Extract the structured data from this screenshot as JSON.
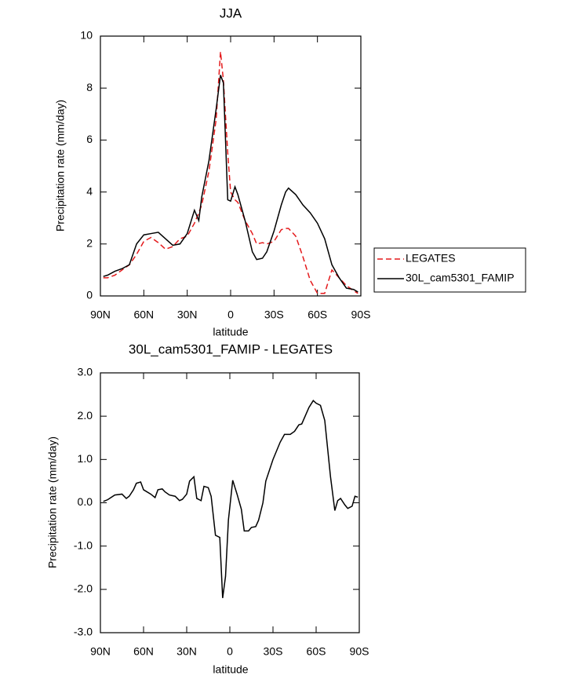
{
  "chart_data": [
    {
      "type": "line",
      "title": "JJA",
      "xlabel": "latitude",
      "ylabel": "Precipitation rate (mm/day)",
      "x": [
        88,
        85,
        80,
        75,
        70,
        65,
        60,
        55,
        50,
        45,
        40,
        35,
        30,
        25,
        22,
        20,
        15,
        10,
        7,
        5,
        2,
        0,
        -3,
        -5,
        -10,
        -15,
        -18,
        -22,
        -25,
        -30,
        -35,
        -38,
        -40,
        -45,
        -50,
        -55,
        -60,
        -65,
        -70,
        -75,
        -80,
        -85,
        -88
      ],
      "series": [
        {
          "name": "LEGATES",
          "color": "#e41a1c",
          "line_style": "dashed",
          "values": [
            0.7,
            0.7,
            0.8,
            1.0,
            1.2,
            1.6,
            2.1,
            2.25,
            2.05,
            1.8,
            1.9,
            2.2,
            2.3,
            2.8,
            3.2,
            3.5,
            4.8,
            6.8,
            9.4,
            8.3,
            5.5,
            4.0,
            3.7,
            3.6,
            2.9,
            2.4,
            2.0,
            2.05,
            2.0,
            2.1,
            2.55,
            2.6,
            2.6,
            2.3,
            1.5,
            0.6,
            0.1,
            0.1,
            1.0,
            0.7,
            0.4,
            0.2,
            0.1
          ]
        },
        {
          "name": "30L_cam5301_FAMIP",
          "color": "#000000",
          "line_style": "solid",
          "values": [
            0.75,
            0.8,
            0.95,
            1.05,
            1.2,
            2.0,
            2.35,
            2.4,
            2.45,
            2.2,
            1.95,
            2.0,
            2.4,
            3.3,
            2.9,
            3.8,
            5.2,
            7.2,
            8.5,
            8.2,
            3.7,
            3.65,
            4.2,
            3.9,
            2.9,
            1.7,
            1.4,
            1.45,
            1.7,
            2.5,
            3.5,
            4.0,
            4.15,
            3.9,
            3.5,
            3.2,
            2.8,
            2.2,
            1.2,
            0.7,
            0.3,
            0.25,
            0.15
          ]
        }
      ],
      "xlim": [
        90,
        -90
      ],
      "xticks": [
        {
          "value": 90,
          "label": "90N"
        },
        {
          "value": 60,
          "label": "60N"
        },
        {
          "value": 30,
          "label": "30N"
        },
        0,
        {
          "value": -30,
          "label": "30S"
        },
        {
          "value": -60,
          "label": "60S"
        },
        {
          "value": -90,
          "label": "90S"
        }
      ],
      "ylim": [
        0,
        10
      ],
      "yticks": [
        0,
        2,
        4,
        6,
        8,
        10
      ],
      "legend": "outside right"
    },
    {
      "type": "line",
      "title": "30L_cam5301_FAMIP - LEGATES",
      "xlabel": "latitude",
      "ylabel": "Precipitation rate (mm/day)",
      "x": [
        88,
        85,
        80,
        75,
        72,
        70,
        67,
        65,
        62,
        60,
        55,
        52,
        50,
        47,
        45,
        42,
        38,
        35,
        33,
        30,
        28,
        25,
        23,
        20,
        18,
        15,
        13,
        10,
        7,
        5,
        3,
        1,
        -2,
        -5,
        -8,
        -10,
        -13,
        -15,
        -18,
        -20,
        -23,
        -25,
        -30,
        -35,
        -38,
        -42,
        -45,
        -48,
        -50,
        -55,
        -58,
        -60,
        -63,
        -66,
        -70,
        -73,
        -75,
        -77,
        -80,
        -82,
        -85,
        -87,
        -89
      ],
      "values": [
        0.03,
        0.07,
        0.18,
        0.2,
        0.1,
        0.15,
        0.3,
        0.45,
        0.48,
        0.3,
        0.2,
        0.12,
        0.3,
        0.32,
        0.25,
        0.18,
        0.15,
        0.05,
        0.08,
        0.2,
        0.5,
        0.6,
        0.1,
        0.05,
        0.38,
        0.35,
        0.15,
        -0.75,
        -0.8,
        -2.2,
        -1.7,
        -0.4,
        0.52,
        0.2,
        -0.15,
        -0.65,
        -0.65,
        -0.57,
        -0.55,
        -0.4,
        0.0,
        0.5,
        1.0,
        1.4,
        1.58,
        1.58,
        1.65,
        1.8,
        1.82,
        2.2,
        2.36,
        2.3,
        2.25,
        1.9,
        0.6,
        -0.18,
        0.05,
        0.1,
        -0.05,
        -0.13,
        -0.08,
        0.15,
        0.13
      ],
      "color": "#000000",
      "xlim": [
        90,
        -90
      ],
      "xticks": [
        {
          "value": 90,
          "label": "90N"
        },
        {
          "value": 60,
          "label": "60N"
        },
        {
          "value": 30,
          "label": "30N"
        },
        0,
        {
          "value": -30,
          "label": "30S"
        },
        {
          "value": -60,
          "label": "60S"
        },
        {
          "value": -90,
          "label": "90S"
        }
      ],
      "ylim": [
        -3,
        3
      ],
      "yticks": [
        {
          "value": -3,
          "label": "-3.0"
        },
        {
          "value": -2,
          "label": "-2.0"
        },
        {
          "value": -1,
          "label": "-1.0"
        },
        {
          "value": 0,
          "label": "0.0"
        },
        {
          "value": 1,
          "label": "1.0"
        },
        {
          "value": 2,
          "label": "2.0"
        },
        {
          "value": 3,
          "label": "3.0"
        }
      ]
    }
  ]
}
